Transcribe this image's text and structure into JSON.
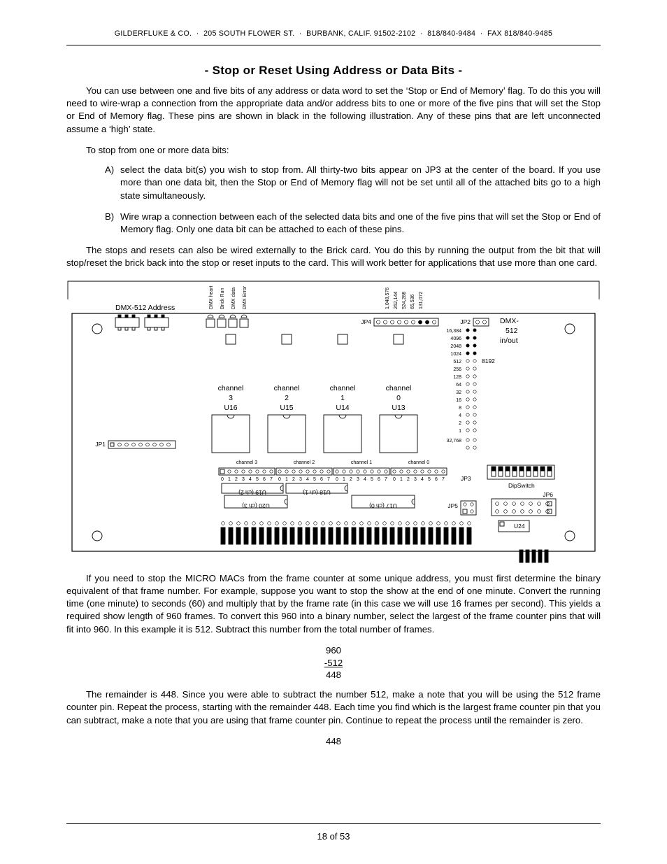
{
  "header": {
    "company": "GILDERFLUKE & CO.",
    "sep": "·",
    "address": "205 SOUTH FLOWER ST.",
    "city": "BURBANK, CALIF. 91502-2102",
    "phone": "818/840-9484",
    "fax_label": "FAX",
    "fax": "818/840-9485"
  },
  "title": "- Stop or Reset Using Address or Data Bits -",
  "p1": "You can use between one and five bits of any address or data word to set the ‘Stop or End of Memory’ flag. To do this you will need to wire-wrap a connection from the appropriate data and/or address bits to one or more of the five pins that will set the Stop or End of Memory flag. These pins are shown in black in the following illustration. Any of these pins that are left unconnected assume a ‘high’ state.",
  "list_intro": "To stop from one or more data bits:",
  "list": [
    {
      "marker": "A)",
      "text": "select the data bit(s) you wish to stop from. All thirty-two bits appear on JP3 at the center of the board. If you use more than one data bit, then the Stop or End of Memory flag will not be set until all of the attached bits go to a high state simultaneously."
    },
    {
      "marker": "B)",
      "text": "Wire wrap a connection between each of the selected data bits and one of the five pins that will set the Stop or End of Memory flag. Only one data bit can be attached to each of these pins."
    }
  ],
  "p2": "The stops and resets can also be wired externally to the Brick card. You do this by running the output from the bit that will stop/reset the brick back into the stop or reset inputs to the card. This will work better for applications that use more than one card.",
  "p3": "If you need to stop the MICRO MACs from the frame counter at some unique address, you must first determine the binary equivalent of that frame number. For example, suppose you want to stop the show at the end of one minute. Convert the running time (one minute) to seconds (60) and multiply that by the frame rate (in this case we will use 16 frames per second). This yields a required show length of 960 frames. To convert this 960 into a binary number, select the largest of the frame counter pins that will fit into 960. In this example it is 512. Subtract this number from the total number of frames.",
  "calc1": {
    "a": "960",
    "b": "-512",
    "c": "448"
  },
  "p4": "The remainder is 448. Since you were able to subtract the number 512, make a note that you will be using the 512 frame counter pin. Repeat the process, starting with the remainder 448. Each time you find which is the largest frame counter pin that you can subtract, make a note that you are using that frame counter pin. Continue to repeat the process until the remainder is zero.",
  "trailing_calc": "448",
  "page_footer": "18 of 53",
  "diagram": {
    "background": "#ffffff",
    "stroke": "#000000",
    "fill_black": "#000000",
    "font_tiny": 7,
    "font_small": 8.5,
    "font_med": 10.5,
    "text_left": "DMX-512 Address",
    "text_right_top": "DMX-",
    "text_right_mid": "512",
    "text_right_bot": "in/out",
    "jp4": "JP4",
    "jp2": "JP2",
    "jp1": "JP1",
    "jp3": "JP3",
    "jp5": "JP5",
    "jp6": "JP6",
    "dipswitch": "DipSwitch",
    "u13": "U13",
    "u14": "U14",
    "u15": "U15",
    "u16": "U16",
    "u17": "U17 (ch 0)",
    "u18": "U18 (ch 1)",
    "u19": "U19 (ch 2)",
    "u20": "U20 (ch 3)",
    "u24": "U24",
    "ch0": "channel\n0",
    "ch1": "channel\n1",
    "ch2": "channel\n2",
    "ch3": "channel\n3",
    "ch0s": "channel 0",
    "ch1s": "channel 1",
    "ch2s": "channel 2",
    "ch3s": "channel 3",
    "v8192": "8192",
    "v32768": "32,768",
    "vert_labels": [
      "DMX heart",
      "Brick Run",
      "DMX data",
      "DMX Error"
    ],
    "mem_labels": [
      "1,048,576",
      "262,144",
      "524,288",
      "65,536",
      "131,072"
    ],
    "pow2": [
      "16,384",
      "4096",
      "2048",
      "1024",
      "512",
      "256",
      "128",
      "64",
      "32",
      "16",
      "8",
      "4",
      "2",
      "1"
    ],
    "digits": [
      "0",
      "1",
      "2",
      "3",
      "4",
      "5",
      "6",
      "7"
    ]
  }
}
